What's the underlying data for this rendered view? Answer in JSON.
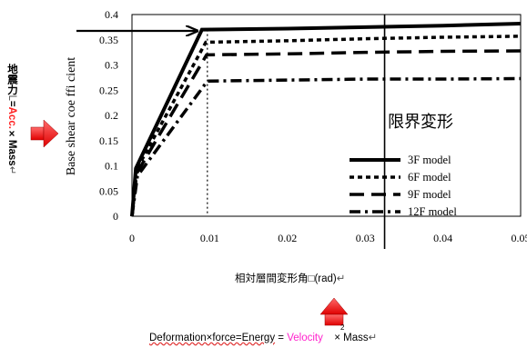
{
  "chart_data": {
    "type": "line",
    "title": "",
    "xlabel": "相対層間変形角□(rad)",
    "ylabel": "Base shear coe ffi cient",
    "xlim": [
      0,
      0.05
    ],
    "ylim": [
      0,
      0.4
    ],
    "x_ticks": [
      "0",
      "0.01",
      "0.02",
      "0.03",
      "0.04",
      "0.05"
    ],
    "y_ticks": [
      "0",
      "0.05",
      "0.1",
      "0.15",
      "0.2",
      "0.25",
      "0.3",
      "0.35",
      "0.4"
    ],
    "series": [
      {
        "name": "3F model",
        "style": "solid",
        "x": [
          0,
          0.0005,
          0.009,
          0.02,
          0.03,
          0.04,
          0.05
        ],
        "y": [
          0,
          0.095,
          0.37,
          0.372,
          0.375,
          0.378,
          0.382
        ]
      },
      {
        "name": "6F model",
        "style": "dotted",
        "x": [
          0,
          0.0005,
          0.0095,
          0.02,
          0.03,
          0.04,
          0.05
        ],
        "y": [
          0,
          0.09,
          0.345,
          0.348,
          0.352,
          0.355,
          0.357
        ]
      },
      {
        "name": "9F model",
        "style": "dashed",
        "x": [
          0,
          0.0006,
          0.0096,
          0.02,
          0.03,
          0.04,
          0.05
        ],
        "y": [
          0,
          0.085,
          0.32,
          0.322,
          0.325,
          0.327,
          0.328
        ]
      },
      {
        "name": "12F model",
        "style": "dashdot",
        "x": [
          0,
          0.0007,
          0.0097,
          0.02,
          0.03,
          0.04,
          0.05
        ],
        "y": [
          0,
          0.08,
          0.268,
          0.27,
          0.272,
          0.272,
          0.273
        ]
      }
    ],
    "annotations": {
      "limit_line_x": 0.0325,
      "limit_label": "限界変形",
      "dotted_line_x": 0.0097
    },
    "grid": false,
    "legend_placement": "bottom-right"
  },
  "side_label": {
    "part1": "地震力",
    "part2": "L",
    "part3": "=",
    "acc": "Acc.",
    "part4": "×",
    "mass": "Mass",
    "mark": "↵"
  },
  "bottom_eq": {
    "deformation": "Deformation×force=Energy",
    "equals": "=",
    "velocity": "Velocity",
    "squared": "2",
    "times": "×",
    "mass": "Mass",
    "mark": "↵"
  },
  "x_title_mark": "↵",
  "colors": {
    "arrow_red": "#ff1a1a",
    "velocity": "#ff22cc",
    "acc": "#ff2222"
  }
}
